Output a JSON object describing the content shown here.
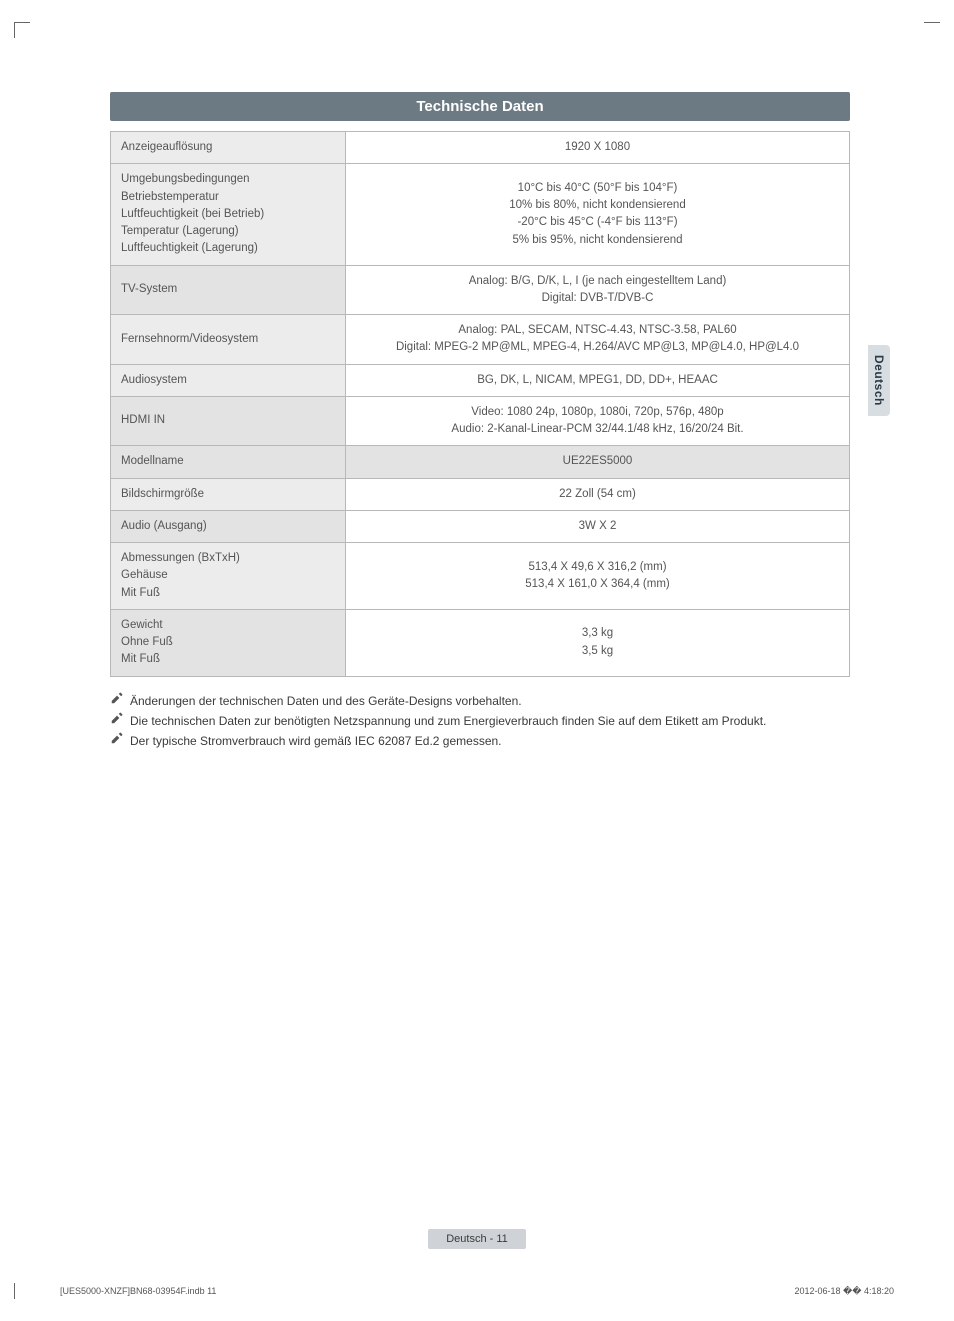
{
  "colors": {
    "title_bar_bg": "#6c7a84",
    "title_bar_text": "#ffffff",
    "label_bg": "#ececec",
    "label_bg_alt": "#e3e3e3",
    "border": "#b8b8b8",
    "body_text": "#4a4a4a",
    "side_tab_bg": "#d8dde2",
    "footer_pill_bg": "#cfd3d7"
  },
  "title": "Technische Daten",
  "side_tab": "Deutsch",
  "rows": [
    {
      "label": "Anzeigeauflösung",
      "value": "1920 X 1080"
    },
    {
      "label": "Umgebungsbedingungen\nBetriebstemperatur\nLuftfeuchtigkeit (bei Betrieb)\nTemperatur (Lagerung)\nLuftfeuchtigkeit (Lagerung)",
      "value": "10°C bis 40°C (50°F bis 104°F)\n10% bis 80%, nicht kondensierend\n-20°C bis 45°C (-4°F  bis 113°F)\n5% bis 95%, nicht kondensierend"
    },
    {
      "label": "TV-System",
      "value": "Analog: B/G, D/K, L, I (je nach eingestelltem Land)\nDigital: DVB-T/DVB-C",
      "alt": true
    },
    {
      "label": "Fernsehnorm/Videosystem",
      "value": "Analog: PAL, SECAM, NTSC-4.43, NTSC-3.58, PAL60\nDigital: MPEG-2 MP@ML, MPEG-4, H.264/AVC MP@L3, MP@L4.0, HP@L4.0"
    },
    {
      "label": "Audiosystem",
      "value": "BG, DK, L, NICAM, MPEG1, DD, DD+, HEAAC"
    },
    {
      "label": "HDMI IN",
      "value": "Video: 1080 24p, 1080p, 1080i, 720p, 576p, 480p\nAudio: 2-Kanal-Linear-PCM 32/44.1/48 kHz, 16/20/24 Bit.",
      "alt": true
    },
    {
      "label": "Modellname",
      "value": "UE22ES5000",
      "modelrow": true,
      "alt": true
    },
    {
      "label": "Bildschirmgröße",
      "value": "22 Zoll (54 cm)"
    },
    {
      "label": "Audio (Ausgang)",
      "value": "3W X 2",
      "alt": true
    },
    {
      "label": "Abmessungen (BxTxH)\nGehäuse\nMit Fuß",
      "value": "513,4 X 49,6 X 316,2 (mm)\n513,4 X 161,0 X 364,4 (mm)"
    },
    {
      "label": "Gewicht\nOhne Fuß\nMit Fuß",
      "value": "3,3 kg\n3,5 kg",
      "alt": true
    }
  ],
  "notes": [
    "Änderungen der technischen Daten und des Geräte-Designs vorbehalten.",
    "Die technischen Daten zur benötigten Netzspannung und zum Energieverbrauch finden Sie auf dem Etikett am Produkt.",
    "Der typische Stromverbrauch wird gemäß IEC 62087 Ed.2 gemessen."
  ],
  "footer": "Deutsch - 11",
  "print_meta_left": "[UES5000-XNZF]BN68-03954F.indb   11",
  "print_meta_right": "2012-06-18   �� 4:18:20"
}
